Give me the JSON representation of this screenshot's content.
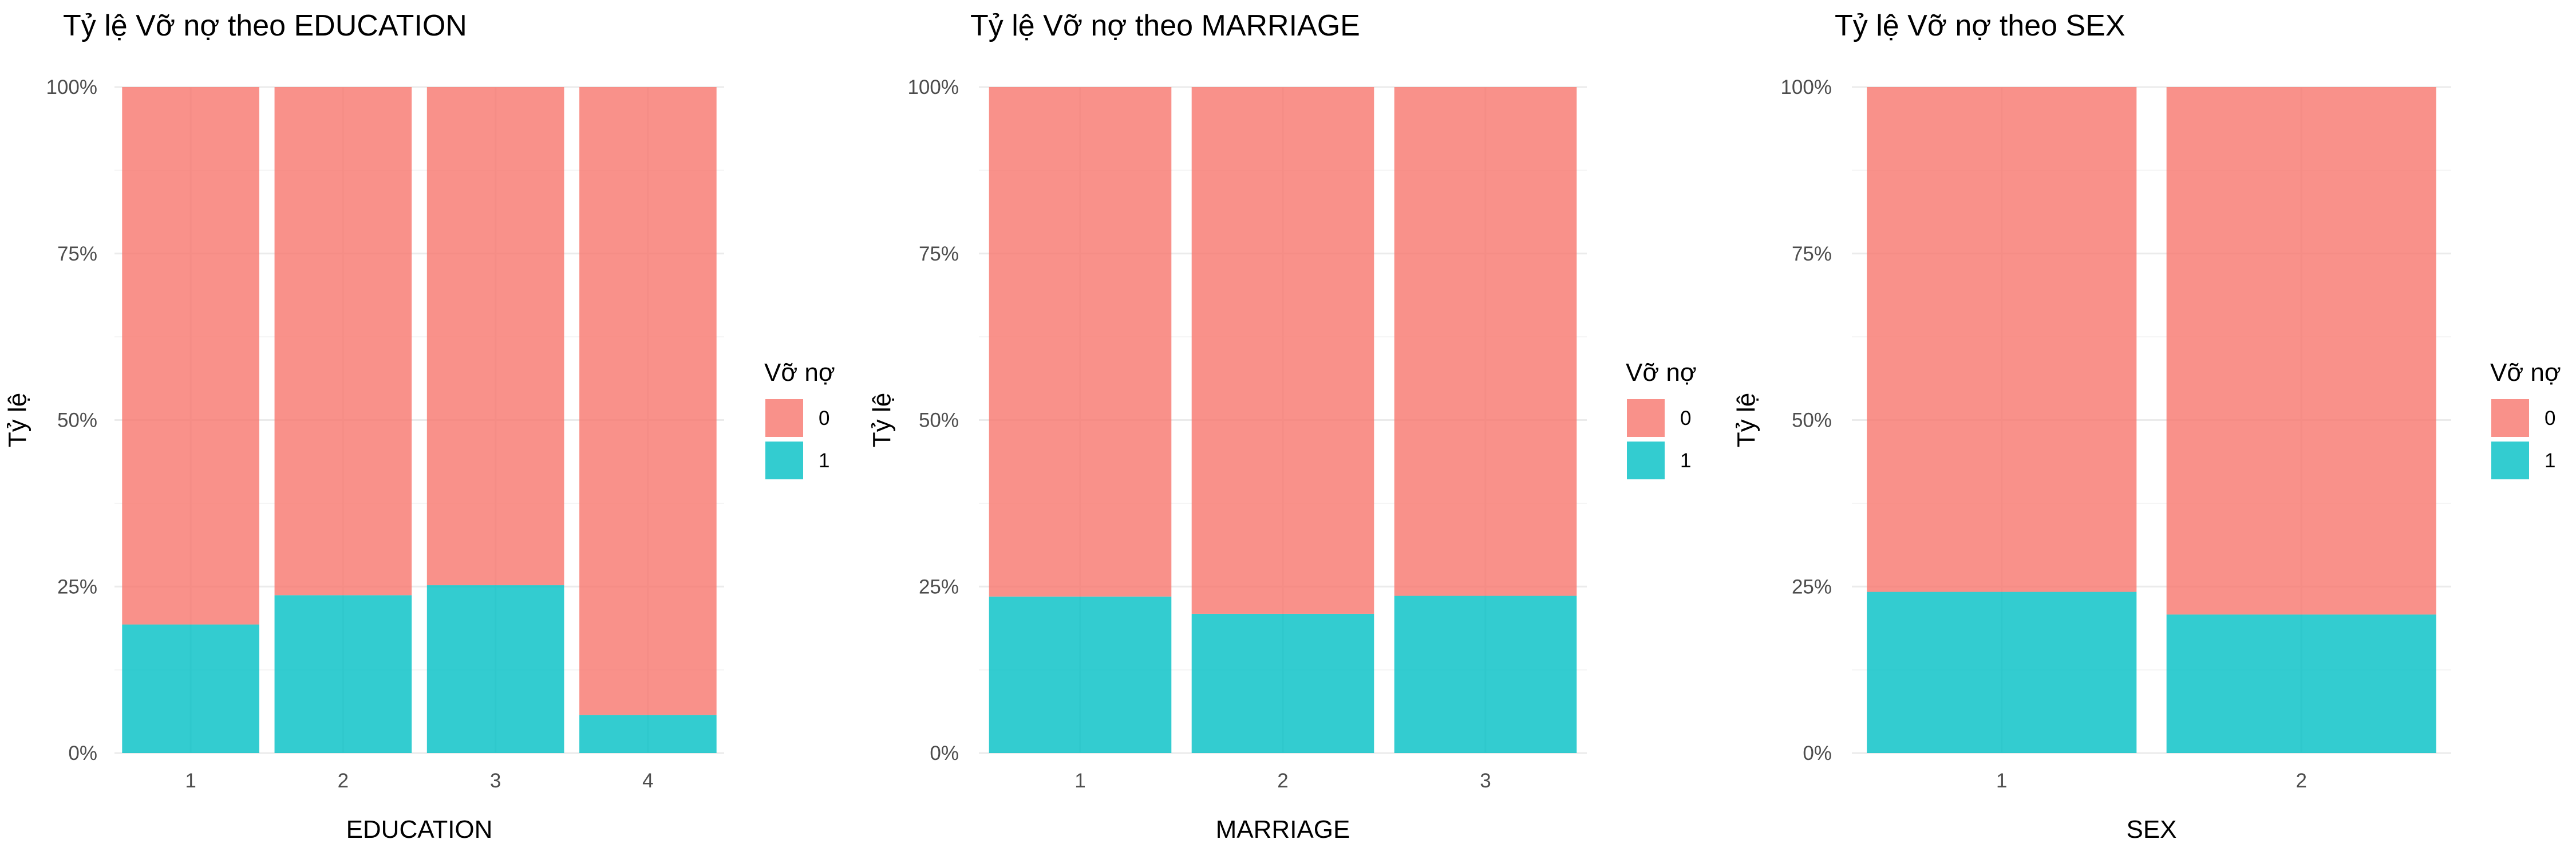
{
  "chart_data": [
    {
      "type": "bar",
      "stacked": "percent",
      "title": "Tỷ lệ Vỡ nợ theo EDUCATION",
      "xlabel": "EDUCATION",
      "ylabel": "Tỷ lệ",
      "categories": [
        "1",
        "2",
        "3",
        "4"
      ],
      "series": [
        {
          "name": "0",
          "values": [
            0.807,
            0.763,
            0.748,
            0.943
          ]
        },
        {
          "name": "1",
          "values": [
            0.193,
            0.237,
            0.252,
            0.057
          ]
        }
      ],
      "ylim": [
        0,
        1
      ],
      "yticks": [
        "0%",
        "25%",
        "50%",
        "75%",
        "100%"
      ],
      "legend": {
        "title": "Vỡ nợ",
        "position": "right"
      },
      "grid": true
    },
    {
      "type": "bar",
      "stacked": "percent",
      "title": "Tỷ lệ Vỡ nợ theo MARRIAGE",
      "xlabel": "MARRIAGE",
      "ylabel": "Tỷ lệ",
      "categories": [
        "1",
        "2",
        "3"
      ],
      "series": [
        {
          "name": "0",
          "values": [
            0.765,
            0.791,
            0.764
          ]
        },
        {
          "name": "1",
          "values": [
            0.235,
            0.209,
            0.236
          ]
        }
      ],
      "ylim": [
        0,
        1
      ],
      "yticks": [
        "0%",
        "25%",
        "50%",
        "75%",
        "100%"
      ],
      "legend": {
        "title": "Vỡ nợ",
        "position": "right"
      },
      "grid": true
    },
    {
      "type": "bar",
      "stacked": "percent",
      "title": "Tỷ lệ Vỡ nợ theo SEX",
      "xlabel": "SEX",
      "ylabel": "Tỷ lệ",
      "categories": [
        "1",
        "2"
      ],
      "series": [
        {
          "name": "0",
          "values": [
            0.758,
            0.792
          ]
        },
        {
          "name": "1",
          "values": [
            0.242,
            0.208
          ]
        }
      ],
      "ylim": [
        0,
        1
      ],
      "yticks": [
        "0%",
        "25%",
        "50%",
        "75%",
        "100%"
      ],
      "legend": {
        "title": "Vỡ nợ",
        "position": "right"
      },
      "grid": true
    }
  ],
  "colors": {
    "series_0": "#F8766D",
    "series_1": "#00BFC4",
    "bar_opacity": 0.8
  }
}
